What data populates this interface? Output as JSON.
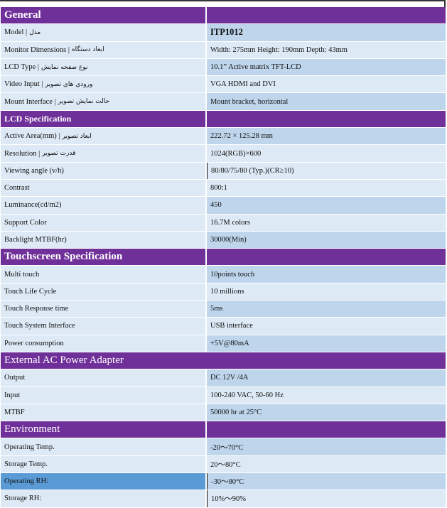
{
  "sections": [
    {
      "title": "General",
      "rows": [
        {
          "label": "Model |",
          "fa": "مدل",
          "value": "ITP1012"
        },
        {
          "label": "Monitor Dimensions |",
          "fa": "ابعاد دستگاه",
          "value": "Width: 275mm Height: 190mm Depth: 43mm"
        },
        {
          "label": "LCD Type |",
          "fa": "نوع صفحه نمایش",
          "value": "10.1” Active matrix TFT-LCD"
        },
        {
          "label": "Video Input |",
          "fa": "ورودی های تصویر",
          "value": "VGA HDMI and DVI"
        },
        {
          "label": "Mount Interface |",
          "fa": "حالت نمایش تصویر",
          "value": "Mount bracket, horizontal"
        }
      ]
    },
    {
      "title": "LCD Specification",
      "rows": [
        {
          "label": "Active Area(mm) |",
          "fa": "ابعاد تصویر",
          "value": "222.72 × 125.28 mm"
        },
        {
          "label": "Resolution |",
          "fa": "قدرت تصویر",
          "value": "1024(RGB)×600"
        },
        {
          "label": "Viewing angle (v/h)",
          "value": "80/80/75/80 (Typ.)(CR≥10)"
        },
        {
          "label": "Contrast",
          "value": "800:1"
        },
        {
          "label": "Luminance(cd/m2)",
          "value": "450"
        },
        {
          "label": "Support Color",
          "value": "16.7M colors"
        },
        {
          "label": "Backlight MTBF(hr)",
          "value": "30000(Min)"
        }
      ]
    },
    {
      "title": "Touchscreen Specification",
      "rows": [
        {
          "label": "Multi touch",
          "value": "10points touch"
        },
        {
          "label": "Touch Life Cycle",
          "value": "10 millions"
        },
        {
          "label": "Touch Response time",
          "value": "5ms"
        },
        {
          "label": "Touch System Interface",
          "value": "USB interface"
        },
        {
          "label": "Power consumption",
          "value": "+5V@80mA"
        }
      ]
    },
    {
      "title": "External AC Power Adapter",
      "rows": [
        {
          "label": "Output",
          "value": "DC 12V /4A"
        },
        {
          "label": "Input",
          "value": "100-240 VAC, 50-60 Hz"
        },
        {
          "label": "MTBF",
          "value": "50000 hr at 25°C"
        }
      ]
    },
    {
      "title": "Environment",
      "rows": [
        {
          "label": "Operating Temp.",
          "value": "-20～70°C"
        },
        {
          "label": "Storage Temp.",
          "value": "20～80°C"
        },
        {
          "label": "Operating RH:",
          "value": "-30～80°C"
        },
        {
          "label": "Storage RH:",
          "value": "10%～90%"
        }
      ]
    }
  ],
  "colors": {
    "header": "#70309a",
    "row_light": "#dde9f5",
    "row_dark": "#bed5ec",
    "highlight": "#5b9bd5"
  }
}
